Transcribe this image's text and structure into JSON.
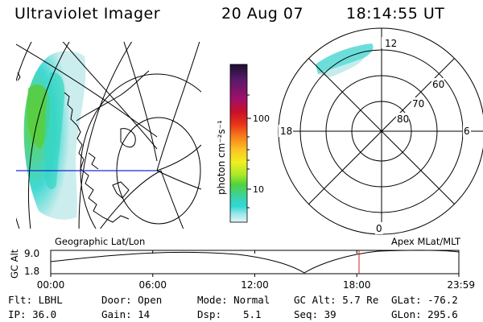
{
  "header": {
    "instrument": "Ultraviolet Imager",
    "date": "20 Aug 07",
    "time": "18:14:55 UT"
  },
  "colorbar": {
    "label": "photon cm⁻²s⁻¹",
    "tick_labels": [
      "100",
      "10"
    ],
    "colors": [
      "#1a1033",
      "#5a1a6a",
      "#a0106a",
      "#c8102a",
      "#e83418",
      "#f7801c",
      "#fcc224",
      "#f0f020",
      "#a8e828",
      "#52d23c",
      "#3ad2a8",
      "#30d8d8",
      "#a0e8e8",
      "#e0f4f4"
    ]
  },
  "polar_plot": {
    "mlt_labels": [
      "12",
      "18",
      "6",
      "0"
    ],
    "lat_labels": [
      "60",
      "70",
      "80"
    ]
  },
  "timeline": {
    "left_label": "Geographic Lat/Lon",
    "right_label": "Apex MLat/MLT",
    "axis_title": "GC Alt",
    "y_ticks": [
      "9.0",
      "1.8"
    ],
    "x_ticks": [
      "00:00",
      "06:00",
      "12:00",
      "18:00",
      "23:59"
    ],
    "current_time_marker_color": "#d02020"
  },
  "info": {
    "flt": "Flt: LBHL",
    "ip": "IP: 36.0",
    "door": "Door: Open",
    "gain": "Gain: 14",
    "mode": "Mode: Normal",
    "dsp_label": "Dsp:",
    "dsp_value": "5.1",
    "gc_alt": "GC Alt: 5.7 Re",
    "seq": "Seq: 39",
    "glat": "GLat: -76.2",
    "glon": "GLon: 295.6"
  }
}
